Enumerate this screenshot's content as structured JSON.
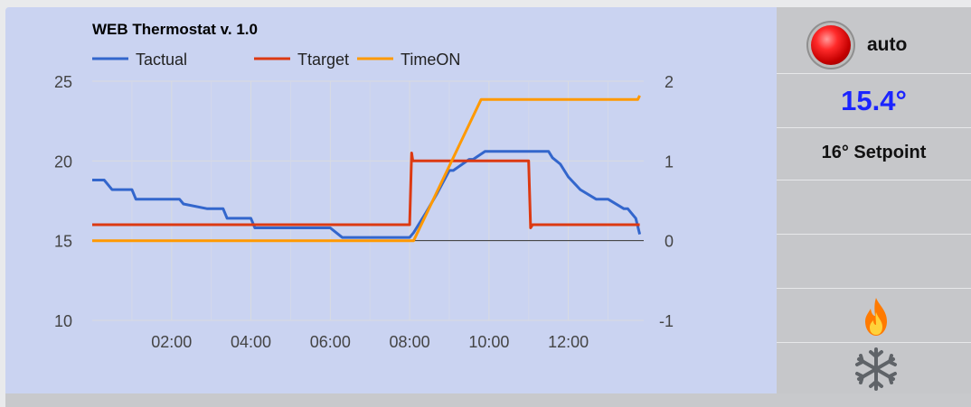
{
  "chart_data": {
    "type": "line",
    "title": "WEB Thermostat v. 1.0",
    "x_ticks": [
      "02:00",
      "04:00",
      "06:00",
      "08:00",
      "10:00",
      "12:00"
    ],
    "y_left": {
      "lim": [
        10,
        25
      ],
      "ticks": [
        "25",
        "20",
        "15",
        "10"
      ]
    },
    "y_right": {
      "lim": [
        -1,
        2
      ],
      "ticks": [
        "2",
        "1",
        "0",
        "-1"
      ]
    },
    "legend": {
      "position": "top-left"
    },
    "grid": true,
    "series": [
      {
        "name": "Tactual",
        "color": "#3366cc",
        "axis": "left",
        "hours": [
          0.0,
          0.3,
          0.4,
          0.5,
          1.0,
          1.1,
          2.0,
          2.2,
          2.3,
          2.9,
          3.0,
          3.3,
          3.4,
          4.0,
          4.1,
          5.9,
          6.0,
          6.2,
          6.3,
          7.9,
          8.0,
          8.1,
          8.4,
          8.7,
          9.0,
          9.1,
          9.5,
          9.6,
          9.9,
          10.2,
          11.5,
          11.6,
          11.8,
          12.0,
          12.3,
          12.7,
          13.0,
          13.4,
          13.5,
          13.7,
          13.8
        ],
        "values": [
          18.8,
          18.8,
          18.5,
          18.2,
          18.2,
          17.6,
          17.6,
          17.6,
          17.3,
          17.0,
          17.0,
          17.0,
          16.4,
          16.4,
          15.8,
          15.8,
          15.8,
          15.4,
          15.2,
          15.2,
          15.2,
          15.5,
          16.7,
          18.0,
          19.4,
          19.4,
          20.1,
          20.1,
          20.6,
          20.6,
          20.6,
          20.2,
          19.8,
          19.0,
          18.2,
          17.6,
          17.6,
          17.0,
          17.0,
          16.4,
          15.4
        ]
      },
      {
        "name": "Ttarget",
        "color": "#dc3912",
        "axis": "left",
        "hours": [
          0.0,
          8.0,
          8.05,
          8.08,
          11.0,
          11.05,
          11.1,
          13.8
        ],
        "values": [
          16,
          16,
          20.5,
          20,
          20,
          15.8,
          16,
          16
        ]
      },
      {
        "name": "TimeON",
        "color": "#ff9900",
        "axis": "right",
        "hours": [
          0.0,
          8.1,
          9.8,
          13.75,
          13.8
        ],
        "values": [
          0.0,
          0.0,
          1.77,
          1.77,
          1.82
        ]
      }
    ]
  },
  "side_panel": {
    "mode": "auto",
    "temperature": "15.4°",
    "setpoint": "16° Setpoint",
    "heat_icon": "flame-icon",
    "cool_icon": "snowflake-icon"
  }
}
